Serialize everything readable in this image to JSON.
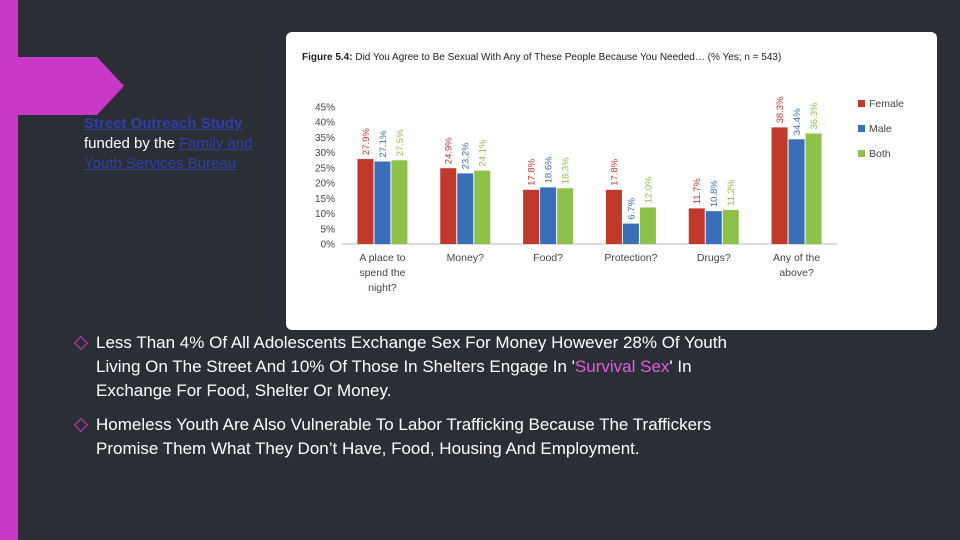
{
  "funding": {
    "study_label": "Street Outreach Study",
    "funded_by": "funded by the ",
    "agency_line1": "Family and",
    "agency_line2": "Youth Services Bureau"
  },
  "chart_data": {
    "type": "bar",
    "title_prefix": "Figure 5.4:",
    "title_rest": " Did You Agree to Be Sexual With Any of These People Because You Needed… (% Yes; n = 543)",
    "categories": [
      [
        "A place to",
        "spend the",
        "night?"
      ],
      [
        "Money?"
      ],
      [
        "Food?"
      ],
      [
        "Protection?"
      ],
      [
        "Drugs?"
      ],
      [
        "Any of the",
        "above?"
      ]
    ],
    "series": [
      {
        "name": "Female",
        "color": "#c0392b",
        "values": [
          27.9,
          24.9,
          17.8,
          17.8,
          11.7,
          38.3
        ]
      },
      {
        "name": "Male",
        "color": "#3a6fb7",
        "values": [
          27.1,
          23.2,
          18.6,
          6.7,
          10.8,
          34.4
        ]
      },
      {
        "name": "Both",
        "color": "#8dc14a",
        "values": [
          27.5,
          24.1,
          18.3,
          12.0,
          11.2,
          36.3
        ]
      }
    ],
    "ylim": [
      0,
      45
    ],
    "yticks": [
      "0%",
      "5%",
      "10%",
      "15%",
      "20%",
      "25%",
      "30%",
      "35%",
      "40%",
      "45%"
    ],
    "legend": "right",
    "grid": false
  },
  "bullets": [
    {
      "pre": "Less Than 4% Of All Adolescents Exchange Sex For Money However 28% Of Youth Living On The Street And 10% Of Those In Shelters Engage In '",
      "highlight": "Survival Sex",
      "post": "' In Exchange For Food, Shelter Or Money."
    },
    {
      "pre": "Homeless Youth Are Also Vulnerable To Labor Trafficking Because The Traffickers Promise Them What They Don’t Have, Food, Housing And Employment.",
      "highlight": "",
      "post": ""
    }
  ]
}
